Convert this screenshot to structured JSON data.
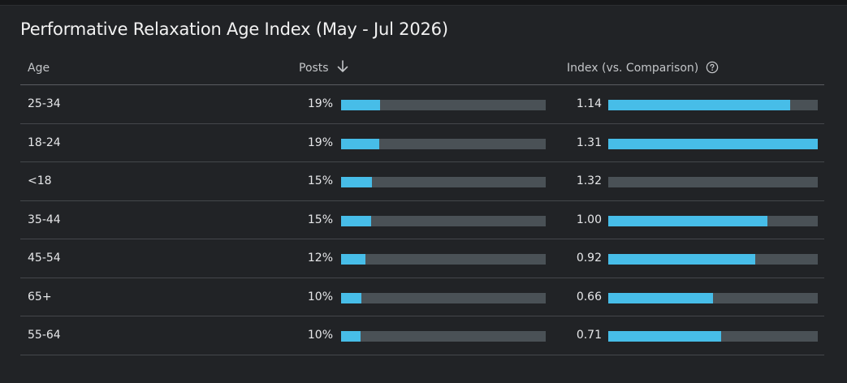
{
  "title": "Performative Relaxation Age Index (May - Jul 2026)",
  "colors": {
    "accent": "#47bde8",
    "track": "#4a5156",
    "background": "#212326"
  },
  "header": {
    "age": "Age",
    "posts": "Posts",
    "index": "Index (vs. Comparison)",
    "sort_icon": "arrow-down-icon",
    "help_icon": "question-circle-icon"
  },
  "chart_data": {
    "type": "table",
    "title": "Performative Relaxation Age Index (May - Jul 2026)",
    "columns": [
      "Age",
      "Posts",
      "Index (vs. Comparison)"
    ],
    "sorted_by": "Posts",
    "sort_direction": "descending",
    "rows": [
      {
        "age": "25-34",
        "posts": "19%",
        "index": "1.14",
        "posts_bar": 0.19,
        "index_bar": 0.87
      },
      {
        "age": "18-24",
        "posts": "19%",
        "index": "1.31",
        "posts_bar": 0.185,
        "index_bar": 1.0
      },
      {
        "age": "<18",
        "posts": "15%",
        "index": "1.32",
        "posts_bar": 0.15,
        "index_bar": 0.0
      },
      {
        "age": "35-44",
        "posts": "15%",
        "index": "1.00",
        "posts_bar": 0.145,
        "index_bar": 0.76
      },
      {
        "age": "45-54",
        "posts": "12%",
        "index": "0.92",
        "posts_bar": 0.12,
        "index_bar": 0.7
      },
      {
        "age": "65+",
        "posts": "10%",
        "index": "0.66",
        "posts_bar": 0.1,
        "index_bar": 0.5
      },
      {
        "age": "55-64",
        "posts": "10%",
        "index": "0.71",
        "posts_bar": 0.095,
        "index_bar": 0.54
      }
    ]
  }
}
